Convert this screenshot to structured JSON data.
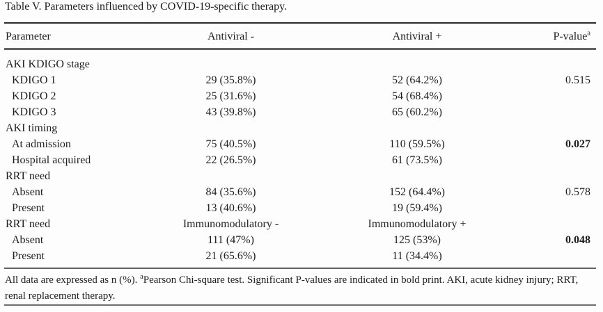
{
  "title": "Table V. Parameters influenced by COVID-19-specific therapy.",
  "header": {
    "col1": "Parameter",
    "col2": "Antiviral -",
    "col3": "Antiviral +",
    "col4": "P-value",
    "col4_sup": "a"
  },
  "rows": [
    {
      "kind": "section",
      "param": "AKI KDIGO stage",
      "c2": "",
      "c3": "",
      "p": "",
      "p_bold": false
    },
    {
      "kind": "item",
      "param": "KDIGO 1",
      "c2": "29 (35.8%)",
      "c3": "52 (64.2%)",
      "p": "0.515",
      "p_bold": false
    },
    {
      "kind": "item",
      "param": "KDIGO 2",
      "c2": "25 (31.6%)",
      "c3": "54 (68.4%)",
      "p": "",
      "p_bold": false
    },
    {
      "kind": "item",
      "param": "KDIGO 3",
      "c2": "43 (39.8%)",
      "c3": "65 (60.2%)",
      "p": "",
      "p_bold": false
    },
    {
      "kind": "section",
      "param": "AKI timing",
      "c2": "",
      "c3": "",
      "p": "",
      "p_bold": false
    },
    {
      "kind": "item",
      "param": "At admission",
      "c2": "75 (40.5%)",
      "c3": "110 (59.5%)",
      "p": "0.027",
      "p_bold": true
    },
    {
      "kind": "item",
      "param": "Hospital acquired",
      "c2": "22 (26.5%)",
      "c3": "61 (73.5%)",
      "p": "",
      "p_bold": false
    },
    {
      "kind": "section",
      "param": "RRT need",
      "c2": "",
      "c3": "",
      "p": "",
      "p_bold": false
    },
    {
      "kind": "item",
      "param": "Absent",
      "c2": "84 (35.6%)",
      "c3": "152 (64.4%)",
      "p": "0.578",
      "p_bold": false
    },
    {
      "kind": "item",
      "param": "Present",
      "c2": "13 (40.6%)",
      "c3": "19 (59.4%)",
      "p": "",
      "p_bold": false
    },
    {
      "kind": "subheader",
      "param": "RRT need",
      "c2": "Immunomodulatory -",
      "c3": "Immunomodulatory +",
      "p": "",
      "p_bold": false
    },
    {
      "kind": "item",
      "param": "Absent",
      "c2": "111 (47%)",
      "c3": "125 (53%)",
      "p": "0.048",
      "p_bold": true
    },
    {
      "kind": "item",
      "param": "Present",
      "c2": "21 (65.6%)",
      "c3": "11 (34.4%)",
      "p": "",
      "p_bold": false
    }
  ],
  "footnote": {
    "prefix": "All data are expressed as n (%). ",
    "sup": "a",
    "rest": "Pearson Chi-square test. Significant P-values are indicated in bold print. AKI, acute kidney injury; RRT, renal replacement therapy."
  },
  "colors": {
    "background": "#fdfdfd",
    "text": "#1e1e1e",
    "rule_dark": "#2b2b2b",
    "rule_gray": "#646464"
  }
}
